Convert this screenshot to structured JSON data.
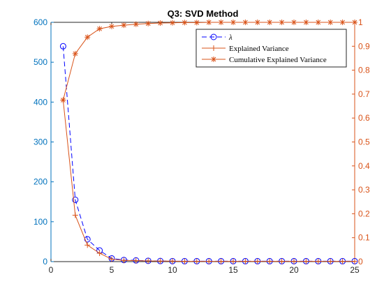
{
  "chart_data": {
    "type": "line",
    "title": "Q3: SVD Method",
    "x": [
      1,
      2,
      3,
      4,
      5,
      6,
      7,
      8,
      9,
      10,
      11,
      12,
      13,
      14,
      15,
      16,
      17,
      18,
      19,
      20,
      21,
      22,
      23,
      24,
      25
    ],
    "xlim": [
      0,
      25
    ],
    "x_ticks": [
      0,
      5,
      10,
      15,
      20,
      25
    ],
    "left_axis": {
      "ylim": [
        0,
        600
      ],
      "ticks": [
        0,
        100,
        200,
        300,
        400,
        500,
        600
      ],
      "color": "#0072BD"
    },
    "right_axis": {
      "ylim": [
        0,
        1
      ],
      "ticks": [
        0,
        0.1,
        0.2,
        0.3,
        0.4,
        0.5,
        0.6,
        0.7,
        0.8,
        0.9,
        1
      ],
      "color": "#D95319"
    },
    "series": [
      {
        "name": "λ",
        "axis": "left",
        "color": "#0000FF",
        "line_style": "dashed",
        "marker": "circle",
        "values": [
          540,
          155,
          56,
          28,
          8,
          4,
          3,
          2,
          1.5,
          1.2,
          1,
          1,
          1,
          1,
          1,
          1,
          1,
          1,
          1,
          1,
          1,
          1,
          1,
          1,
          1
        ]
      },
      {
        "name": "Explained Variance",
        "axis": "right",
        "color": "#D95319",
        "line_style": "solid",
        "marker": "plus",
        "values": [
          0.675,
          0.194,
          0.069,
          0.035,
          0.01,
          0.005,
          0.004,
          0.003,
          0.002,
          0.002,
          0.001,
          0.001,
          0.001,
          0.001,
          0.001,
          0.001,
          0.001,
          0.001,
          0.001,
          0.001,
          0.001,
          0.001,
          0.001,
          0.001,
          0.001
        ]
      },
      {
        "name": "Cumulative Explained Variance",
        "axis": "right",
        "color": "#D95319",
        "line_style": "solid",
        "marker": "asterisk",
        "values": [
          0.675,
          0.869,
          0.938,
          0.973,
          0.983,
          0.988,
          0.992,
          0.995,
          0.997,
          0.998,
          0.999,
          0.999,
          1.0,
          1.0,
          1.0,
          1.0,
          1.0,
          1.0,
          1.0,
          1.0,
          1.0,
          1.0,
          1.0,
          1.0,
          1.0
        ]
      }
    ],
    "legend_position": "top-right",
    "grid": false
  }
}
